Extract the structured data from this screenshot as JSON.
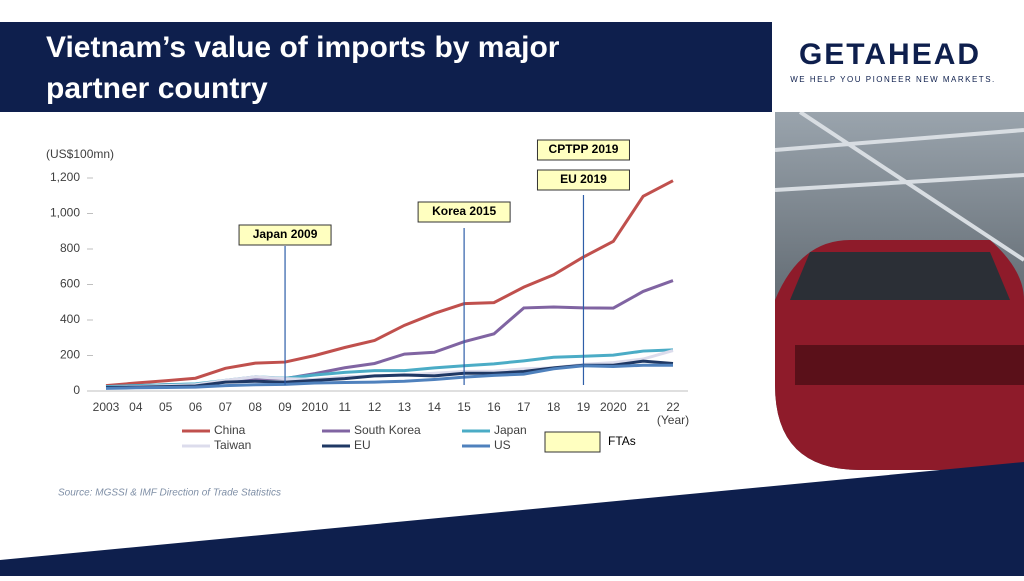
{
  "header": {
    "title_lines": [
      "Vietnam’s value of imports by major",
      "partner country"
    ]
  },
  "logo": {
    "name": "GETAHEAD",
    "tagline": "WE HELP YOU PIONEER NEW MARKETS."
  },
  "source": "Source: MGSSI & IMF Direction of Trade Statistics",
  "chart_data": {
    "type": "line",
    "y_label": "(US$100mn)",
    "x_label": "(Year)",
    "categories": [
      "2003",
      "04",
      "05",
      "06",
      "07",
      "08",
      "09",
      "2010",
      "11",
      "12",
      "13",
      "14",
      "15",
      "16",
      "17",
      "18",
      "19",
      "2020",
      "21",
      "22"
    ],
    "ylim": [
      0,
      1200
    ],
    "yticks": [
      0,
      200,
      400,
      600,
      800,
      {
        "value": 1000,
        "label": "1,000"
      },
      {
        "value": 1200,
        "label": "1,200"
      }
    ],
    "grid": false,
    "series": [
      {
        "name": "China",
        "color": "#c0504d",
        "values": [
          30,
          45,
          58,
          72,
          128,
          157,
          163,
          200,
          245,
          285,
          370,
          437,
          492,
          498,
          585,
          655,
          755,
          843,
          1097,
          1185
        ]
      },
      {
        "name": "South Korea",
        "color": "#8064a2",
        "values": [
          25,
          30,
          35,
          38,
          55,
          72,
          70,
          98,
          131,
          155,
          208,
          218,
          278,
          322,
          468,
          473,
          468,
          467,
          561,
          622
        ]
      },
      {
        "name": "Japan",
        "color": "#4bacc6",
        "values": [
          25,
          30,
          35,
          40,
          60,
          80,
          72,
          90,
          105,
          115,
          115,
          130,
          142,
          153,
          170,
          190,
          196,
          202,
          225,
          232
        ]
      },
      {
        "name": "Taiwan",
        "color": "#dcdcec",
        "values": [
          20,
          25,
          30,
          35,
          60,
          80,
          70,
          65,
          80,
          85,
          90,
          100,
          110,
          112,
          125,
          130,
          150,
          160,
          180,
          228
        ]
      },
      {
        "name": "EU",
        "color": "#1f3864",
        "values": [
          20,
          22,
          25,
          28,
          50,
          55,
          50,
          60,
          70,
          85,
          90,
          85,
          100,
          100,
          110,
          130,
          145,
          145,
          168,
          155
        ]
      },
      {
        "name": "US",
        "color": "#4f81bd",
        "values": [
          15,
          18,
          20,
          22,
          30,
          35,
          37,
          45,
          48,
          50,
          55,
          65,
          78,
          88,
          95,
          125,
          142,
          138,
          145,
          145
        ]
      }
    ],
    "annotations": [
      {
        "text": "Japan 2009",
        "x": "09"
      },
      {
        "text": "Korea 2015",
        "x": "15"
      },
      {
        "text": "CPTPP 2019",
        "x": "19"
      },
      {
        "text": "EU 2019",
        "x": "19"
      }
    ],
    "fta_legend": {
      "text": "FTAs",
      "color": "#ffffc0"
    }
  }
}
